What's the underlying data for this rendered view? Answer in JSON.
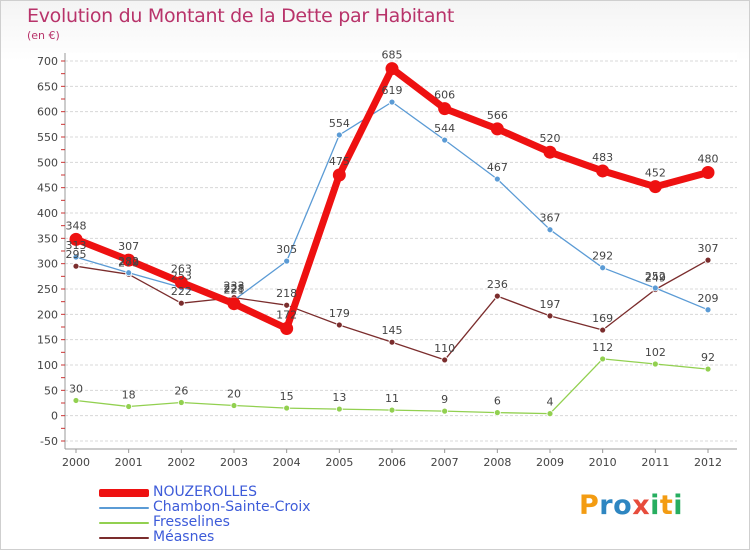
{
  "title": "Evolution du Montant de la Dette par Habitant",
  "subtitle": "(en €)",
  "logo": {
    "letters": [
      "P",
      "r",
      "o",
      "x",
      "i",
      "t",
      "i"
    ],
    "colors": [
      "#f39c12",
      "#2e86c1",
      "#2e86c1",
      "#e74c3c",
      "#27ae60",
      "#f39c12",
      "#27ae60"
    ]
  },
  "chart_data": {
    "type": "line",
    "title": "Evolution du Montant de la Dette par Habitant",
    "ylabel": "(en €)",
    "xlabel": "",
    "x": [
      "2000",
      "2001",
      "2002",
      "2003",
      "2004",
      "2005",
      "2006",
      "2007",
      "2008",
      "2009",
      "2010",
      "2011",
      "2012"
    ],
    "ylim": [
      -50,
      700
    ],
    "yticks": [
      -50,
      0,
      50,
      100,
      150,
      200,
      250,
      300,
      350,
      400,
      450,
      500,
      550,
      600,
      650,
      700
    ],
    "grid": "horizontal",
    "series": [
      {
        "name": "NOUZEROLLES",
        "color": "#ee1111",
        "bold": true,
        "values": [
          348,
          307,
          263,
          221,
          172,
          475,
          685,
          606,
          566,
          520,
          483,
          452,
          480
        ],
        "labels": [
          "348",
          "307",
          "263",
          "221",
          "172",
          "475",
          "685",
          "606",
          "566",
          "520",
          "483",
          "452",
          "480"
        ]
      },
      {
        "name": "Chambon-Sainte-Croix",
        "color": "#5b9bd5",
        "bold": false,
        "values": [
          313,
          282,
          253,
          228,
          305,
          554,
          619,
          544,
          467,
          367,
          292,
          252,
          209
        ],
        "labels": [
          "313",
          "282",
          "253",
          "228",
          "305",
          "554",
          "619",
          "544",
          "467",
          "367",
          "292",
          "252",
          "209"
        ]
      },
      {
        "name": "Fresselines",
        "color": "#92d050",
        "bold": false,
        "values": [
          30,
          18,
          26,
          20,
          15,
          13,
          11,
          9,
          6,
          4,
          112,
          102,
          92
        ],
        "labels": [
          "30",
          "18",
          "26",
          "20",
          "15",
          "13",
          "11",
          "9",
          "6",
          "4",
          "112",
          "102",
          "92"
        ]
      },
      {
        "name": "Méasnes",
        "color": "#7b2d2d",
        "bold": false,
        "values": [
          295,
          279,
          222,
          233,
          218,
          179,
          145,
          110,
          236,
          197,
          169,
          249,
          307
        ],
        "labels": [
          "295",
          "279",
          "222",
          "233",
          "218",
          "179",
          "145",
          "110",
          "236",
          "197",
          "169",
          "249",
          "307"
        ]
      }
    ]
  }
}
